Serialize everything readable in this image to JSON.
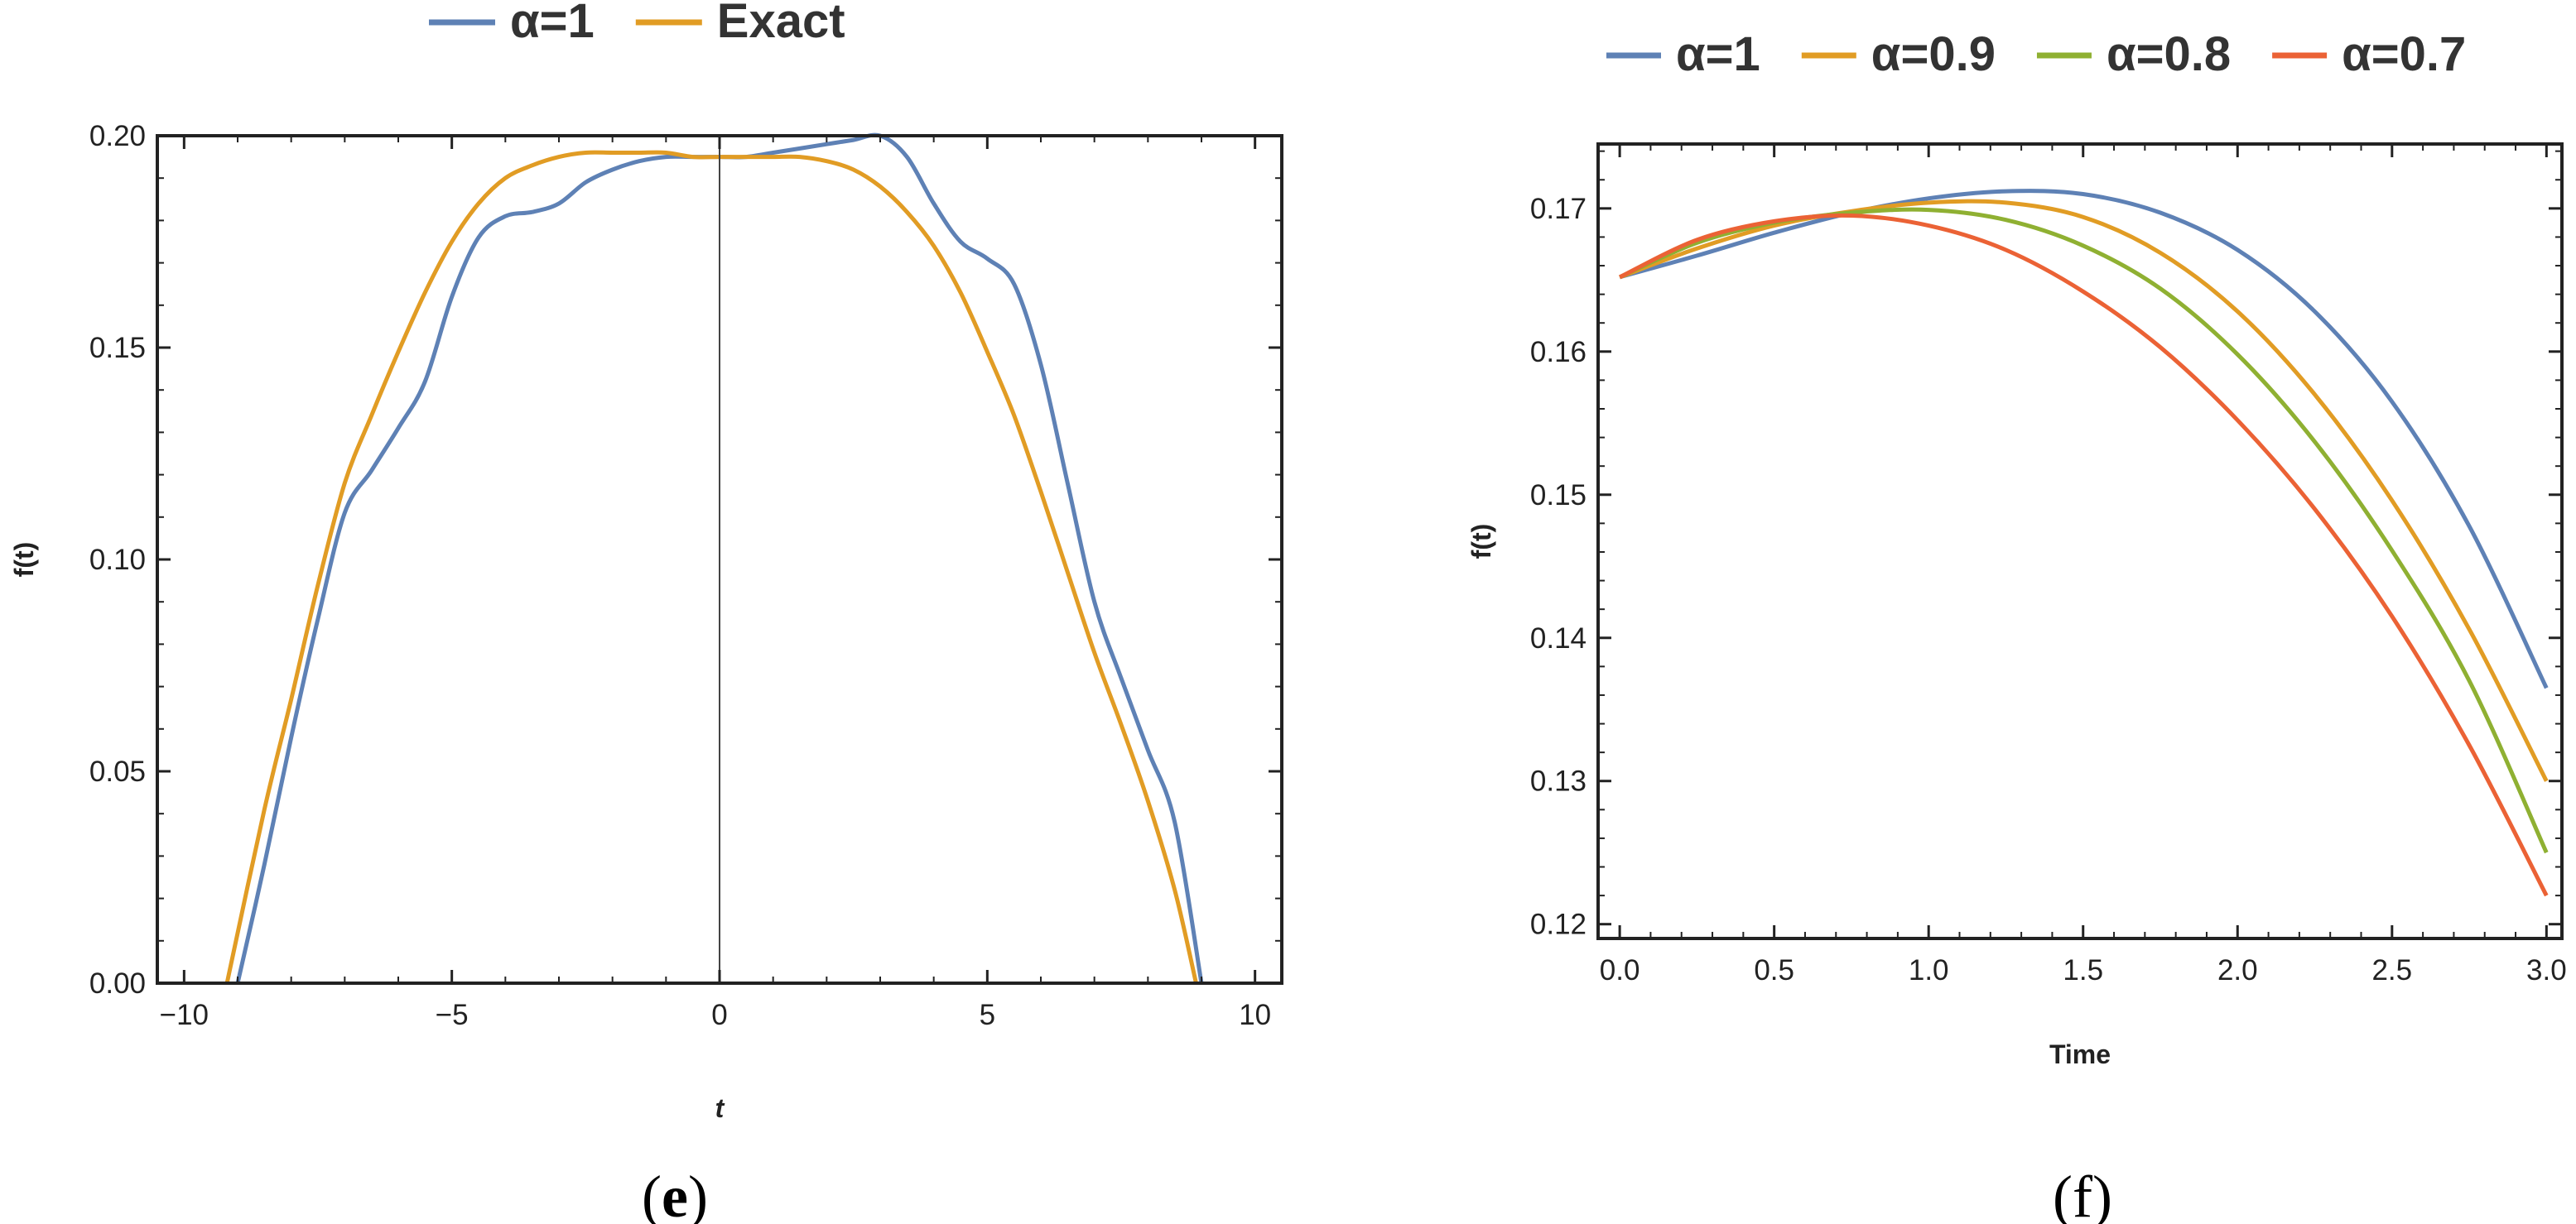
{
  "chart_data": [
    {
      "type": "line",
      "caption_letter": "e",
      "caption_open": "(",
      "caption_close": ")",
      "xlabel": "t",
      "ylabel": "f(t)",
      "xlim": [
        -10.5,
        10.5
      ],
      "ylim": [
        0,
        0.2
      ],
      "xticks": [
        -10,
        -5,
        0,
        5,
        10
      ],
      "xtick_labels": [
        "−10",
        "−5",
        "0",
        "5",
        "10"
      ],
      "yticks": [
        0,
        0.05,
        0.1,
        0.15,
        0.2
      ],
      "ytick_labels": [
        "0.00",
        "0.05",
        "0.10",
        "0.15",
        "0.20"
      ],
      "vertical_line_x": 0,
      "grid": false,
      "legend": "top-center",
      "series": [
        {
          "name": "α=1",
          "color": "#5e81b5",
          "x": [
            -9.0,
            -8.5,
            -8.0,
            -7.5,
            -7.0,
            -6.5,
            -6.0,
            -5.5,
            -5.0,
            -4.5,
            -4.0,
            -3.5,
            -3.0,
            -2.5,
            -2.0,
            -1.5,
            -1.0,
            -0.5,
            0.0,
            0.5,
            1.0,
            1.5,
            2.0,
            2.5,
            3.0,
            3.5,
            4.0,
            4.5,
            5.0,
            5.5,
            6.0,
            6.5,
            7.0,
            7.5,
            8.0,
            8.5,
            9.0
          ],
          "y": [
            0.0,
            0.028,
            0.058,
            0.086,
            0.111,
            0.121,
            0.131,
            0.142,
            0.162,
            0.176,
            0.181,
            0.182,
            0.184,
            0.189,
            0.192,
            0.194,
            0.195,
            0.195,
            0.195,
            0.195,
            0.196,
            0.197,
            0.198,
            0.199,
            0.2,
            0.195,
            0.184,
            0.175,
            0.171,
            0.165,
            0.146,
            0.118,
            0.09,
            0.072,
            0.055,
            0.038,
            0.0
          ]
        },
        {
          "name": "Exact",
          "color": "#e19c24",
          "x": [
            -9.2,
            -8.5,
            -8.0,
            -7.5,
            -7.0,
            -6.5,
            -6.0,
            -5.5,
            -5.0,
            -4.5,
            -4.0,
            -3.5,
            -3.0,
            -2.5,
            -2.0,
            -1.5,
            -1.0,
            -0.5,
            0.0,
            0.5,
            1.0,
            1.5,
            2.0,
            2.5,
            3.0,
            3.5,
            4.0,
            4.5,
            5.0,
            5.5,
            6.0,
            6.5,
            7.0,
            7.5,
            8.0,
            8.5,
            8.9
          ],
          "y": [
            0.0,
            0.041,
            0.067,
            0.094,
            0.118,
            0.134,
            0.149,
            0.163,
            0.175,
            0.184,
            0.19,
            0.193,
            0.195,
            0.196,
            0.196,
            0.196,
            0.196,
            0.195,
            0.195,
            0.195,
            0.195,
            0.195,
            0.194,
            0.192,
            0.188,
            0.182,
            0.174,
            0.163,
            0.149,
            0.134,
            0.116,
            0.097,
            0.078,
            0.061,
            0.043,
            0.022,
            0.0
          ]
        }
      ]
    },
    {
      "type": "line",
      "caption_letter": "f",
      "caption_open": "(",
      "caption_close": ")",
      "xlabel": "Time",
      "ylabel": "f(t)",
      "xlim": [
        -0.07,
        3.05
      ],
      "ylim": [
        0.119,
        0.1745
      ],
      "xticks": [
        0,
        0.5,
        1,
        1.5,
        2,
        2.5,
        3
      ],
      "xtick_labels": [
        "0.0",
        "0.5",
        "1.0",
        "1.5",
        "2.0",
        "2.5",
        "3.0"
      ],
      "yticks": [
        0.12,
        0.13,
        0.14,
        0.15,
        0.16,
        0.17
      ],
      "ytick_labels": [
        "0.12",
        "0.13",
        "0.14",
        "0.15",
        "0.16",
        "0.17"
      ],
      "grid": false,
      "legend": "top",
      "series": [
        {
          "name": "α=1",
          "color": "#5e81b5",
          "x": [
            0.0,
            0.25,
            0.5,
            0.75,
            1.0,
            1.25,
            1.5,
            1.75,
            2.0,
            2.25,
            2.5,
            2.75,
            3.0
          ],
          "y": [
            0.1652,
            0.1667,
            0.1683,
            0.1697,
            0.1707,
            0.1712,
            0.171,
            0.1697,
            0.1671,
            0.1628,
            0.1565,
            0.1478,
            0.1365
          ]
        },
        {
          "name": "α=0.9",
          "color": "#e19c24",
          "x": [
            0.0,
            0.25,
            0.5,
            0.75,
            1.0,
            1.25,
            1.5,
            1.75,
            2.0,
            2.25,
            2.5,
            2.75,
            3.0
          ],
          "y": [
            0.1652,
            0.1672,
            0.1688,
            0.1698,
            0.1704,
            0.1704,
            0.1694,
            0.1669,
            0.1628,
            0.157,
            0.1496,
            0.1406,
            0.13
          ]
        },
        {
          "name": "α=0.8",
          "color": "#8fb032",
          "x": [
            0.0,
            0.25,
            0.5,
            0.75,
            1.0,
            1.25,
            1.5,
            1.75,
            2.0,
            2.25,
            2.5,
            2.75,
            3.0
          ],
          "y": [
            0.1652,
            0.1676,
            0.169,
            0.1697,
            0.1699,
            0.1692,
            0.1674,
            0.1644,
            0.1598,
            0.1537,
            0.1461,
            0.137,
            0.125
          ]
        },
        {
          "name": "α=0.7",
          "color": "#eb6235",
          "x": [
            0.0,
            0.25,
            0.5,
            0.75,
            1.0,
            1.25,
            1.5,
            1.75,
            2.0,
            2.25,
            2.5,
            2.75,
            3.0
          ],
          "y": [
            0.1652,
            0.1678,
            0.1691,
            0.1695,
            0.1688,
            0.1671,
            0.1642,
            0.1603,
            0.1552,
            0.149,
            0.1415,
            0.1325,
            0.122
          ]
        }
      ]
    }
  ]
}
